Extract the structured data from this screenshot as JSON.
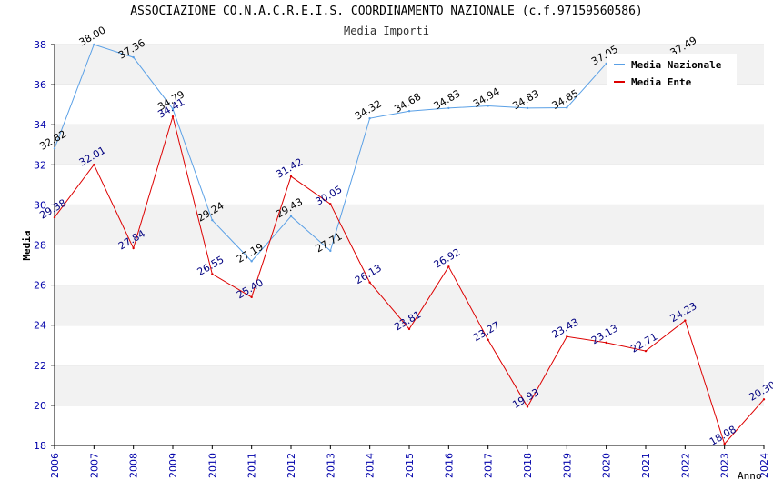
{
  "chart_data": {
    "type": "line",
    "title": "ASSOCIAZIONE CO.N.A.C.R.E.I.S. COORDINAMENTO NAZIONALE (c.f.97159560586)",
    "subtitle": "Media Importi",
    "xlabel": "Anno",
    "ylabel": "Media",
    "ylim": [
      18,
      38
    ],
    "yticks": [
      18,
      20,
      22,
      24,
      26,
      28,
      30,
      32,
      34,
      36,
      38
    ],
    "categories": [
      "2006",
      "2007",
      "2008",
      "2009",
      "2010",
      "2011",
      "2012",
      "2013",
      "2014",
      "2015",
      "2016",
      "2017",
      "2018",
      "2019",
      "2020",
      "2021",
      "2022",
      "2023",
      "2024"
    ],
    "legend_position": "top-right",
    "series": [
      {
        "name": "Media Nazionale",
        "color": "#5aa0e6",
        "label_color": "#000000",
        "values": [
          32.82,
          38.0,
          37.36,
          34.79,
          29.24,
          27.19,
          29.43,
          27.71,
          34.32,
          34.68,
          34.83,
          34.94,
          34.83,
          34.85,
          37.05,
          null,
          37.49,
          null,
          null
        ],
        "labels": [
          "32.82",
          "38.00",
          "37.36",
          "34.79",
          "29.24",
          "27.19",
          "29.43",
          "27.71",
          "34.32",
          "34.68",
          "34.83",
          "34.94",
          "34.83",
          "34.85",
          "37.05",
          "",
          "37.49",
          "",
          ""
        ]
      },
      {
        "name": "Media Ente",
        "color": "#dd0000",
        "label_color": "#000080",
        "values": [
          29.38,
          32.01,
          27.84,
          34.41,
          26.55,
          25.4,
          31.42,
          30.05,
          26.13,
          23.81,
          26.92,
          23.27,
          19.93,
          23.43,
          23.13,
          22.71,
          24.23,
          18.08,
          20.3
        ],
        "labels": [
          "29.38",
          "32.01",
          "27.84",
          "34.41",
          "26.55",
          "25.40",
          "31.42",
          "30.05",
          "26.13",
          "23.81",
          "26.92",
          "23.27",
          "19.93",
          "23.43",
          "23.13",
          "22.71",
          "24.23",
          "18.08",
          "20.30"
        ]
      }
    ]
  }
}
